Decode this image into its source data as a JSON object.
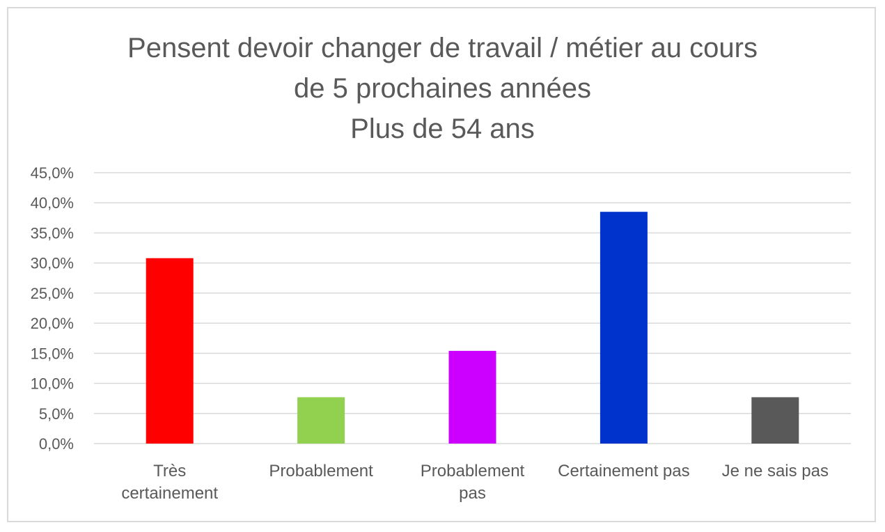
{
  "chart_data": {
    "type": "bar",
    "title_lines": [
      "Pensent devoir changer de travail / métier au cours",
      "de 5 prochaines années",
      "Plus de 54 ans"
    ],
    "categories": [
      [
        "Très",
        "certainement"
      ],
      [
        "Probablement"
      ],
      [
        "Probablement",
        "pas"
      ],
      [
        "Certainement pas"
      ],
      [
        "Je ne sais pas"
      ]
    ],
    "values": [
      30.8,
      7.7,
      15.4,
      38.5,
      7.7
    ],
    "bar_colors": [
      "#ff0000",
      "#92d050",
      "#cc00ff",
      "#0033cc",
      "#595959"
    ],
    "ylim": [
      0,
      45
    ],
    "yticks": [
      "0,0%",
      "5,0%",
      "10,0%",
      "15,0%",
      "20,0%",
      "25,0%",
      "30,0%",
      "35,0%",
      "40,0%",
      "45,0%"
    ],
    "grid": true,
    "legend": "none",
    "xlabel": "",
    "ylabel": ""
  }
}
